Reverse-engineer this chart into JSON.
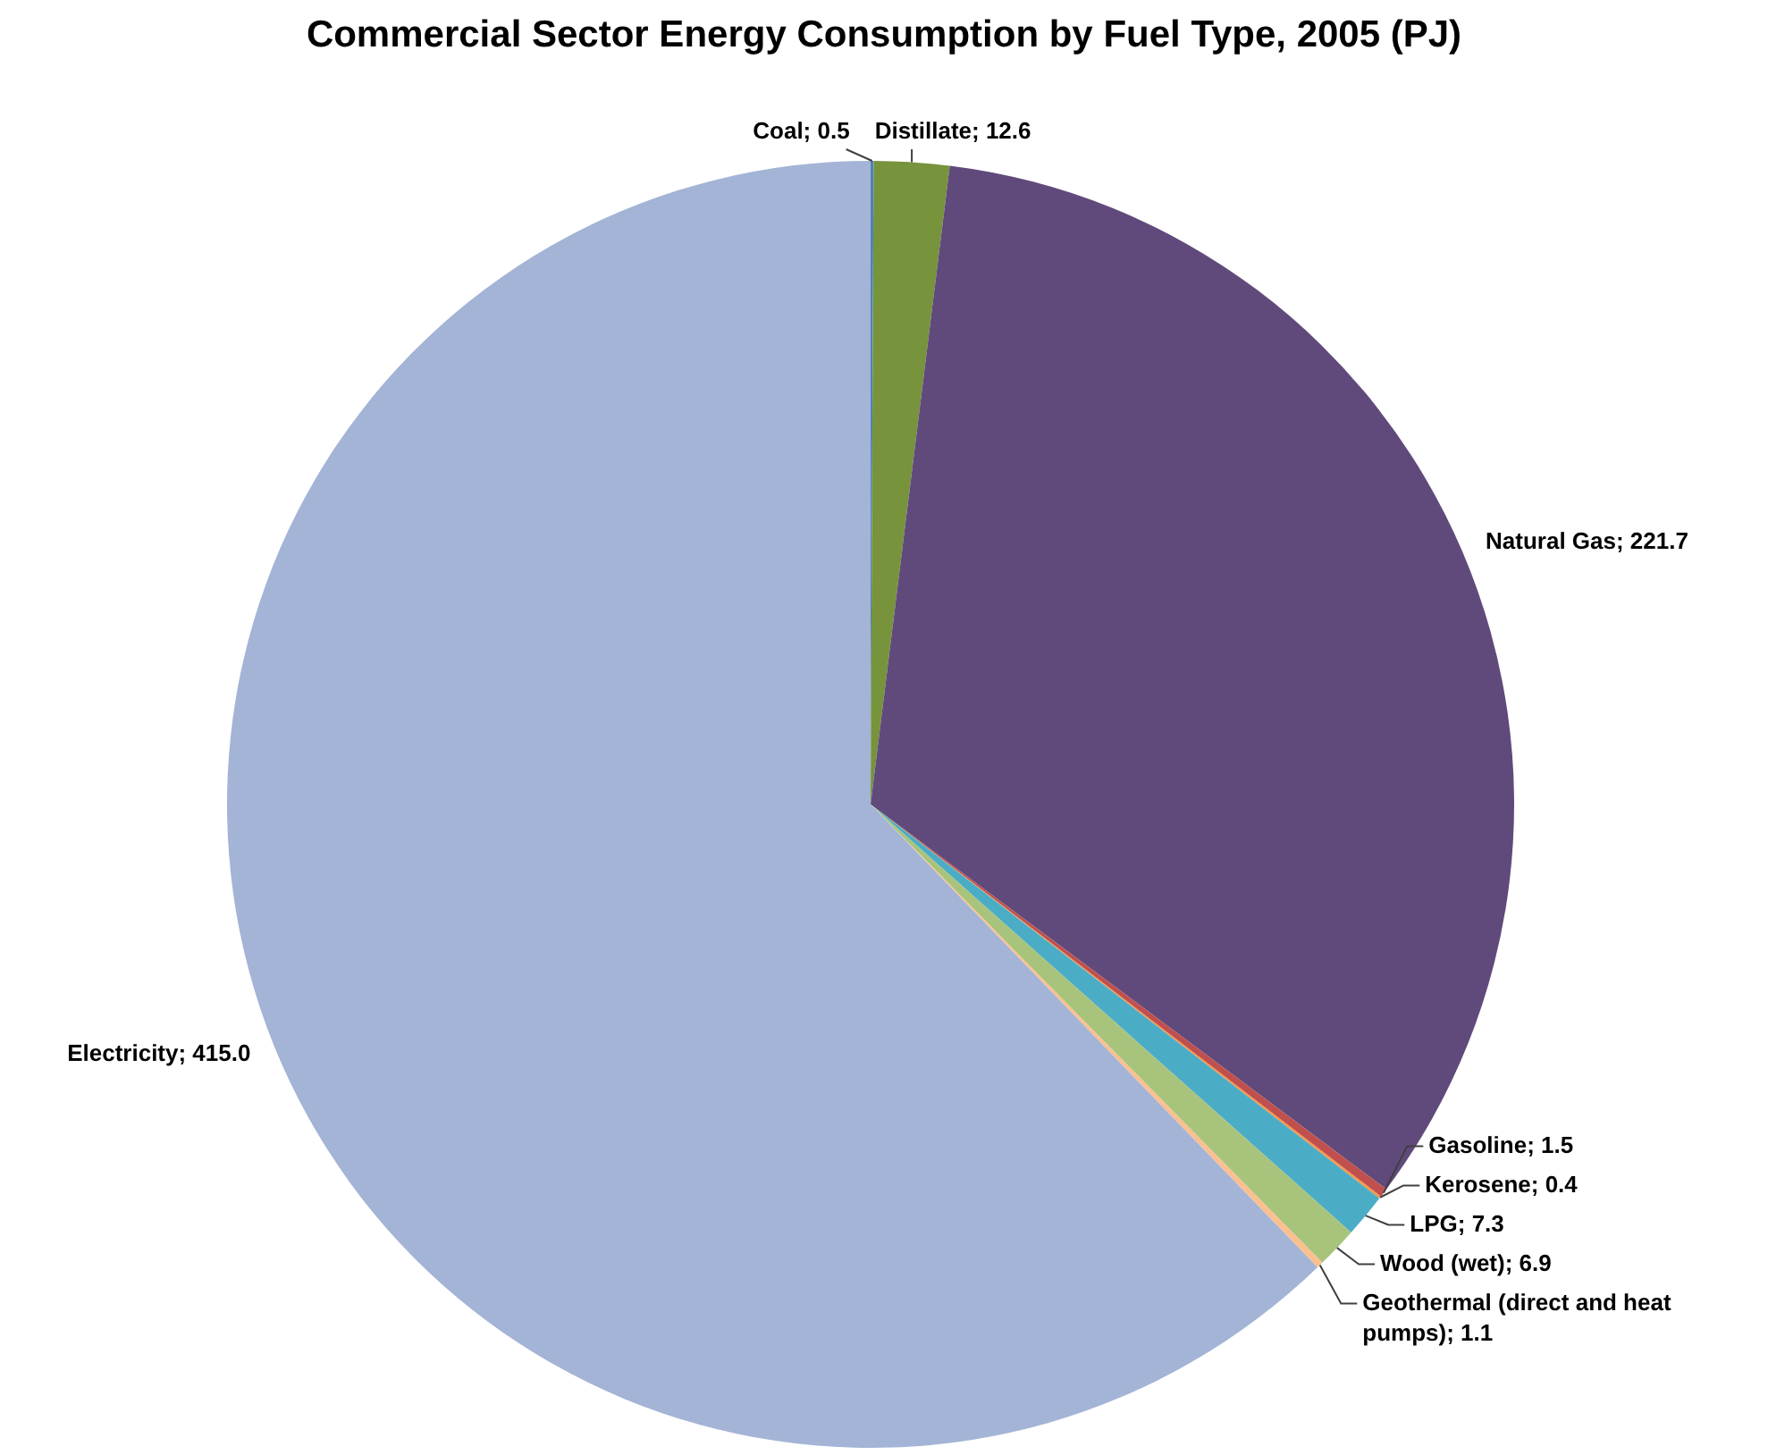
{
  "chart_data": {
    "type": "pie",
    "title": "Commercial Sector Energy Consumption by Fuel Type, 2005 (PJ)",
    "categories": [
      "Coal",
      "Distillate",
      "Natural Gas",
      "Gasoline",
      "Kerosene",
      "LPG",
      "Wood (wet)",
      "Geothermal (direct and heat pumps)",
      "Electricity"
    ],
    "values": [
      0.5,
      12.6,
      221.7,
      1.5,
      0.4,
      7.3,
      6.9,
      1.1,
      415.0
    ],
    "colors": [
      "#4f81bd",
      "#77933c",
      "#604a7b",
      "#c0504d",
      "#f79646",
      "#4bacc6",
      "#a8c47c",
      "#fac090",
      "#a3b4d6"
    ],
    "value_labels": [
      "0.5",
      "12.6",
      "221.7",
      "1.5",
      "0.4",
      "7.3",
      "6.9",
      "1.1",
      "415.0"
    ],
    "legend": false
  }
}
